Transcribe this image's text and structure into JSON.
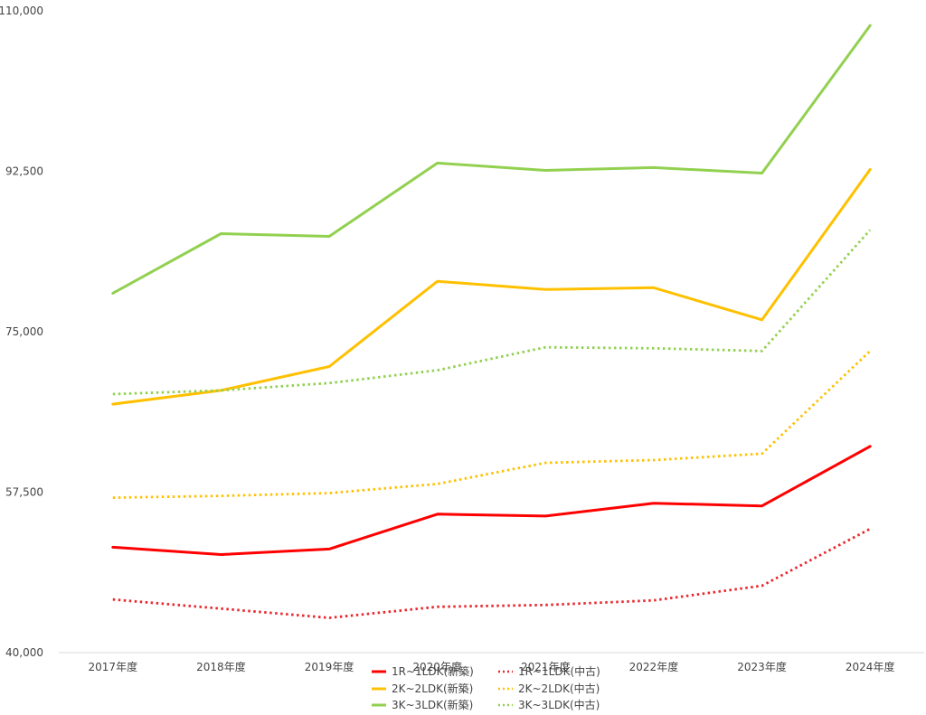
{
  "chart_data": {
    "type": "line",
    "title": "",
    "xlabel": "",
    "ylabel": "",
    "categories": [
      "2017年度",
      "2018年度",
      "2019年度",
      "2020年度",
      "2021年度",
      "2022年度",
      "2023年度",
      "2024年度"
    ],
    "ylim": [
      40000,
      110000
    ],
    "yticks": [
      40000,
      57500,
      75000,
      92500,
      110000
    ],
    "ytick_labels": [
      "40,000",
      "57,500",
      "75,000",
      "92,500",
      "110,000"
    ],
    "grid": false,
    "legend_position": "bottom",
    "series": [
      {
        "name": "1R~1LDK(新築)",
        "color": "#ff0000",
        "style": "solid",
        "values": [
          51500,
          50700,
          51300,
          55100,
          54900,
          56300,
          56000,
          62500
        ]
      },
      {
        "name": "1R~1LDK(中古)",
        "color": "#e8282d",
        "style": "dotted",
        "values": [
          45800,
          44800,
          43800,
          45000,
          45200,
          45700,
          47300,
          53500
        ]
      },
      {
        "name": "2K~2LDK(新築)",
        "color": "#ffc000",
        "style": "solid",
        "values": [
          67100,
          68600,
          71200,
          80500,
          79600,
          79800,
          76300,
          92700
        ]
      },
      {
        "name": "2K~2LDK(中古)",
        "color": "#ffc000",
        "style": "dotted",
        "values": [
          56900,
          57100,
          57400,
          58400,
          60700,
          61000,
          61700,
          72900
        ]
      },
      {
        "name": "3K~3LDK(新築)",
        "color": "#92d050",
        "style": "solid",
        "values": [
          79200,
          85700,
          85400,
          93400,
          92600,
          92900,
          92300,
          108400
        ]
      },
      {
        "name": "3K~3LDK(中古)",
        "color": "#92d050",
        "style": "dotted",
        "values": [
          68200,
          68600,
          69400,
          70800,
          73300,
          73200,
          72900,
          86100
        ]
      }
    ]
  }
}
